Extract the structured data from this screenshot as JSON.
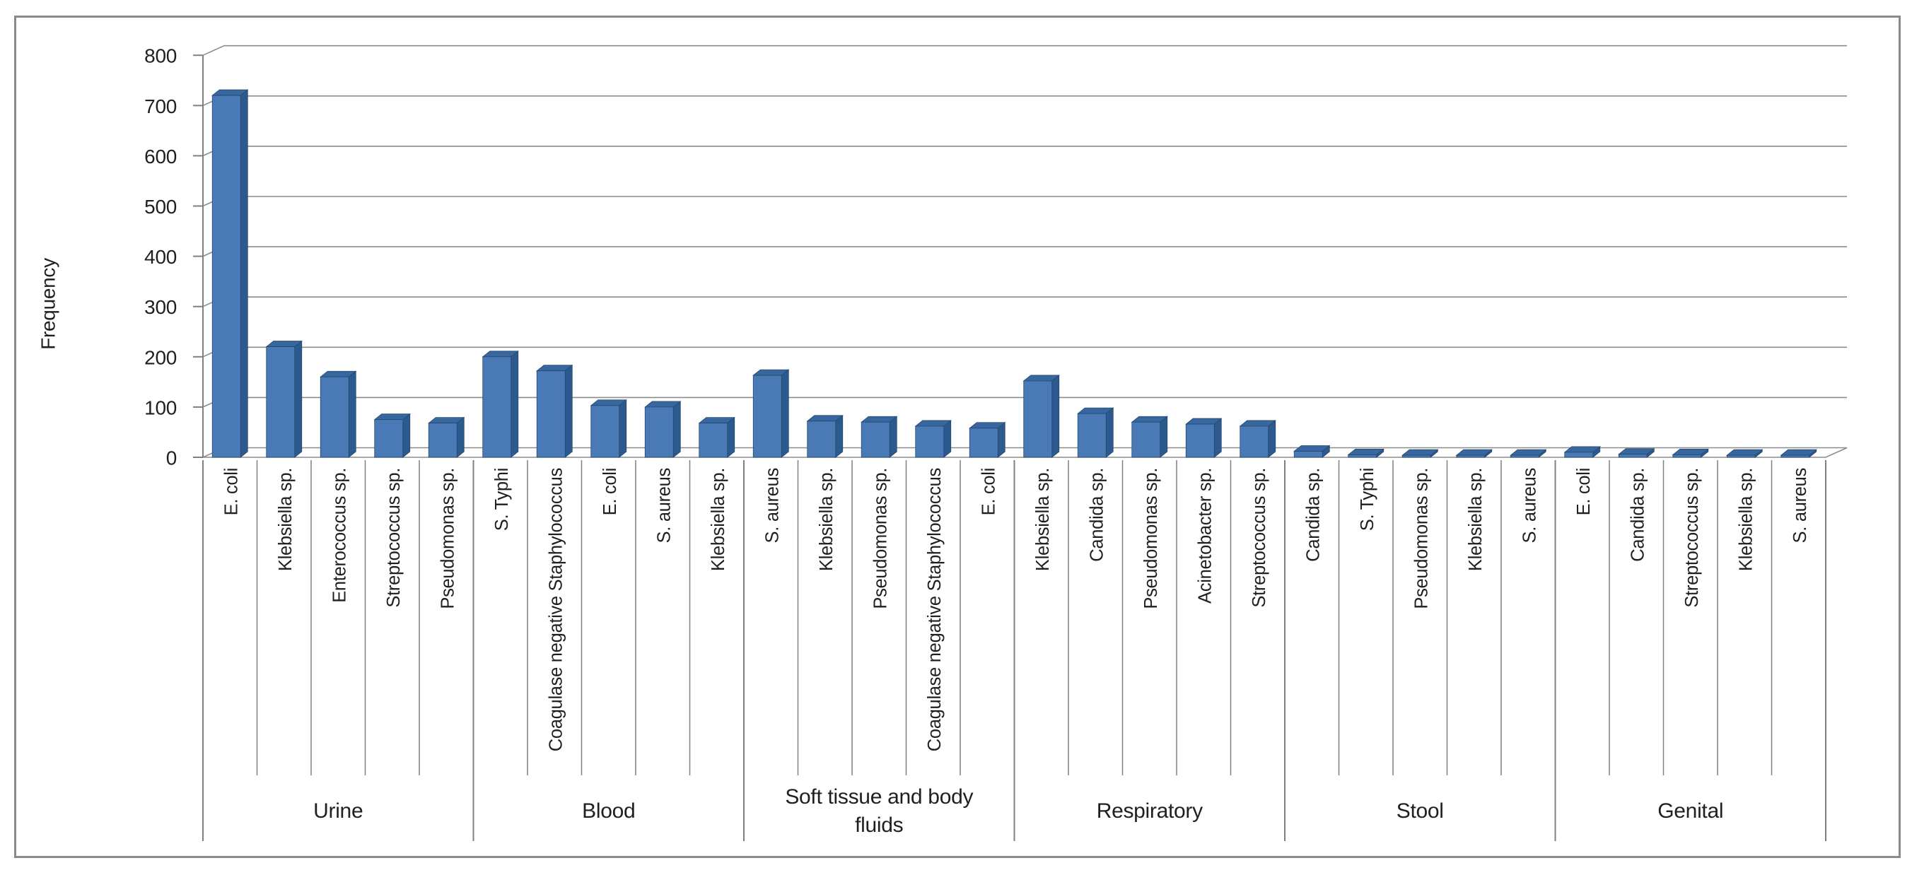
{
  "chart_data": {
    "type": "bar",
    "title": "",
    "xlabel": "",
    "ylabel": "Frequency",
    "y_axis": {
      "min": 0,
      "max": 800,
      "step": 100,
      "tick_labels": [
        "0",
        "100",
        "200",
        "300",
        "400",
        "500",
        "600",
        "700",
        "800"
      ]
    },
    "grid": true,
    "legend": "none",
    "style": "3d-clustered-column",
    "colors": {
      "bar_front": "#4a7ab5",
      "bar_side": "#2d5a8e",
      "bar_top": "#38679f",
      "bar_outline": "#24486e",
      "gridline": "#8c8c8c",
      "axis": "#808080",
      "separator": "#808080",
      "text": "#1f1f1f",
      "frame_border": "#8a8a8a"
    },
    "groups": [
      {
        "label": "Urine",
        "label_lines": [
          "Urine"
        ],
        "bars": [
          {
            "organism": "E. coli",
            "value": 720
          },
          {
            "organism": "Klebsiella sp.",
            "value": 220
          },
          {
            "organism": "Enterococcus sp.",
            "value": 160
          },
          {
            "organism": "Streptococcus sp.",
            "value": 75
          },
          {
            "organism": "Pseudomonas sp.",
            "value": 68
          }
        ]
      },
      {
        "label": "Blood",
        "label_lines": [
          "Blood"
        ],
        "bars": [
          {
            "organism": "S. Typhi",
            "value": 200
          },
          {
            "organism": "Coagulase negative Staphylococcus",
            "value": 172
          },
          {
            "organism": "E. coli",
            "value": 103
          },
          {
            "organism": "S. aureus",
            "value": 100
          },
          {
            "organism": "Klebsiella sp.",
            "value": 68
          }
        ]
      },
      {
        "label": "Soft tissue and body fluids",
        "label_lines": [
          "Soft tissue and body",
          "fluids"
        ],
        "bars": [
          {
            "organism": "S. aureus",
            "value": 163
          },
          {
            "organism": "Klebsiella sp.",
            "value": 72
          },
          {
            "organism": "Pseudomonas sp.",
            "value": 70
          },
          {
            "organism": "Coagulase negative Staphylococcus",
            "value": 62
          },
          {
            "organism": "E. coli",
            "value": 58
          }
        ]
      },
      {
        "label": "Respiratory",
        "label_lines": [
          "Respiratory"
        ],
        "bars": [
          {
            "organism": "Klebsiella sp.",
            "value": 152
          },
          {
            "organism": "Candida sp.",
            "value": 87
          },
          {
            "organism": "Pseudomonas sp.",
            "value": 70
          },
          {
            "organism": "Acinetobacter sp.",
            "value": 66
          },
          {
            "organism": "Streptococcus sp.",
            "value": 62
          }
        ]
      },
      {
        "label": "Stool",
        "label_lines": [
          "Stool"
        ],
        "bars": [
          {
            "organism": "Candida sp.",
            "value": 12
          },
          {
            "organism": "S. Typhi",
            "value": 5
          },
          {
            "organism": "Pseudomonas sp.",
            "value": 4
          },
          {
            "organism": "Klebsiella sp.",
            "value": 4
          },
          {
            "organism": "S. aureus",
            "value": 4
          }
        ]
      },
      {
        "label": "Genital",
        "label_lines": [
          "Genital"
        ],
        "bars": [
          {
            "organism": "E. coli",
            "value": 10
          },
          {
            "organism": "Candida sp.",
            "value": 6
          },
          {
            "organism": "Streptococcus sp.",
            "value": 5
          },
          {
            "organism": "Klebsiella sp.",
            "value": 4
          },
          {
            "organism": "S. aureus",
            "value": 4
          }
        ]
      }
    ]
  }
}
